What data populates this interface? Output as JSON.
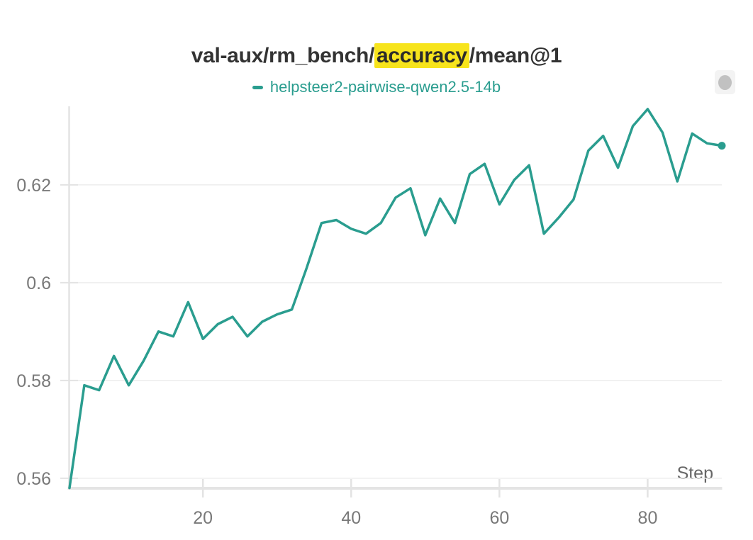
{
  "panel": {
    "title": {
      "prefix": "val-aux/rm_bench/",
      "highlight": "accuracy",
      "suffix": "/mean@1",
      "highlight_color": "#f7e41c"
    },
    "legend": {
      "label": "helpsteer2-pairwise-qwen2.5-14b",
      "color": "#2a9d8f"
    },
    "controls": {
      "drag_handle_icon": "grab-dot-icon"
    }
  },
  "chart_data": {
    "type": "line",
    "title": "val-aux/rm_bench/accuracy/mean@1",
    "xlabel": "Step",
    "ylabel": "",
    "grid": "horizontal-only",
    "legend_position": "top-center",
    "x_ticks": [
      20,
      40,
      60,
      80
    ],
    "y_ticks": [
      0.56,
      0.58,
      0.6,
      0.62
    ],
    "y_tick_labels": [
      "0.56",
      "0.58",
      "0.6",
      "0.62"
    ],
    "x_range": [
      2,
      90
    ],
    "y_range": [
      0.5578,
      0.6365
    ],
    "x": [
      2,
      4,
      6,
      8,
      10,
      12,
      14,
      16,
      18,
      20,
      22,
      24,
      26,
      28,
      30,
      32,
      34,
      36,
      38,
      40,
      42,
      44,
      46,
      48,
      50,
      52,
      54,
      56,
      58,
      60,
      62,
      64,
      66,
      68,
      70,
      72,
      74,
      76,
      78,
      80,
      82,
      84,
      86,
      88,
      90
    ],
    "series": [
      {
        "name": "helpsteer2-pairwise-qwen2.5-14b",
        "color": "#2a9d8f",
        "end_marker": true,
        "values": [
          0.558,
          0.579,
          0.578,
          0.585,
          0.579,
          0.584,
          0.59,
          0.589,
          0.596,
          0.5885,
          0.5915,
          0.593,
          0.589,
          0.592,
          0.5935,
          0.5945,
          0.603,
          0.6122,
          0.6128,
          0.611,
          0.61,
          0.6122,
          0.6174,
          0.6193,
          0.6097,
          0.6172,
          0.6122,
          0.6222,
          0.6243,
          0.616,
          0.621,
          0.624,
          0.61,
          0.6133,
          0.617,
          0.627,
          0.63,
          0.6235,
          0.632,
          0.6355,
          0.6307,
          0.6207,
          0.6305,
          0.6285,
          0.628
        ]
      }
    ]
  }
}
